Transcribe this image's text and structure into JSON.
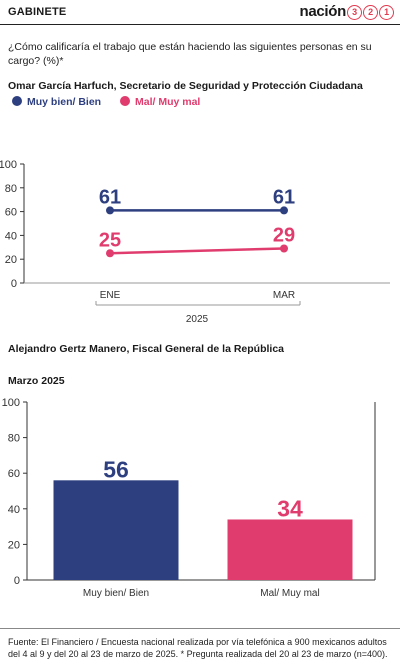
{
  "header": {
    "section": "GABINETE",
    "brand": "nación",
    "brand_digits": [
      "3",
      "2",
      "1"
    ]
  },
  "question": "¿Cómo calificaría el trabajo que están haciendo las siguientes personas en su cargo? (%)*",
  "colors": {
    "positive": "#2e3f80",
    "negative": "#e03c6e"
  },
  "chart_data": [
    {
      "type": "line",
      "subtitle": "Omar García Harfuch, Secretario de Seguridad y Protección Ciudadana",
      "categories": [
        "ENE",
        "MAR"
      ],
      "year": "2025",
      "yticks": [
        "100",
        "80",
        "60",
        "40",
        "20",
        "0"
      ],
      "ylim": [
        0,
        100
      ],
      "series": [
        {
          "name": "Muy bien/ Bien",
          "values": [
            61,
            61
          ],
          "labels": [
            "61",
            "61"
          ],
          "color": "#2e3f80"
        },
        {
          "name": "Mal/ Muy mal",
          "values": [
            25,
            29
          ],
          "labels": [
            "25",
            "29"
          ],
          "color": "#e03c6e"
        }
      ],
      "legend_position": "top-left",
      "grid": false
    },
    {
      "type": "bar",
      "subtitle": "Alejandro Gertz Manero, Fiscal General de la República",
      "period": "Marzo 2025",
      "categories": [
        "Muy bien/ Bien",
        "Mal/ Muy mal"
      ],
      "values": [
        56,
        34
      ],
      "labels": [
        "56",
        "34"
      ],
      "colors": [
        "#2e3f80",
        "#e03c6e"
      ],
      "yticks": [
        "100",
        "80",
        "60",
        "40",
        "20",
        "0"
      ],
      "ylim": [
        0,
        100
      ],
      "grid": false
    }
  ],
  "source": "Fuente: El Financiero / Encuesta nacional realizada por vía telefónica a 900 mexicanos adultos del 4 al 9 y del 20 al 23 de marzo de 2025. * Pregunta realizada del 20 al 23 de marzo (n=400)."
}
